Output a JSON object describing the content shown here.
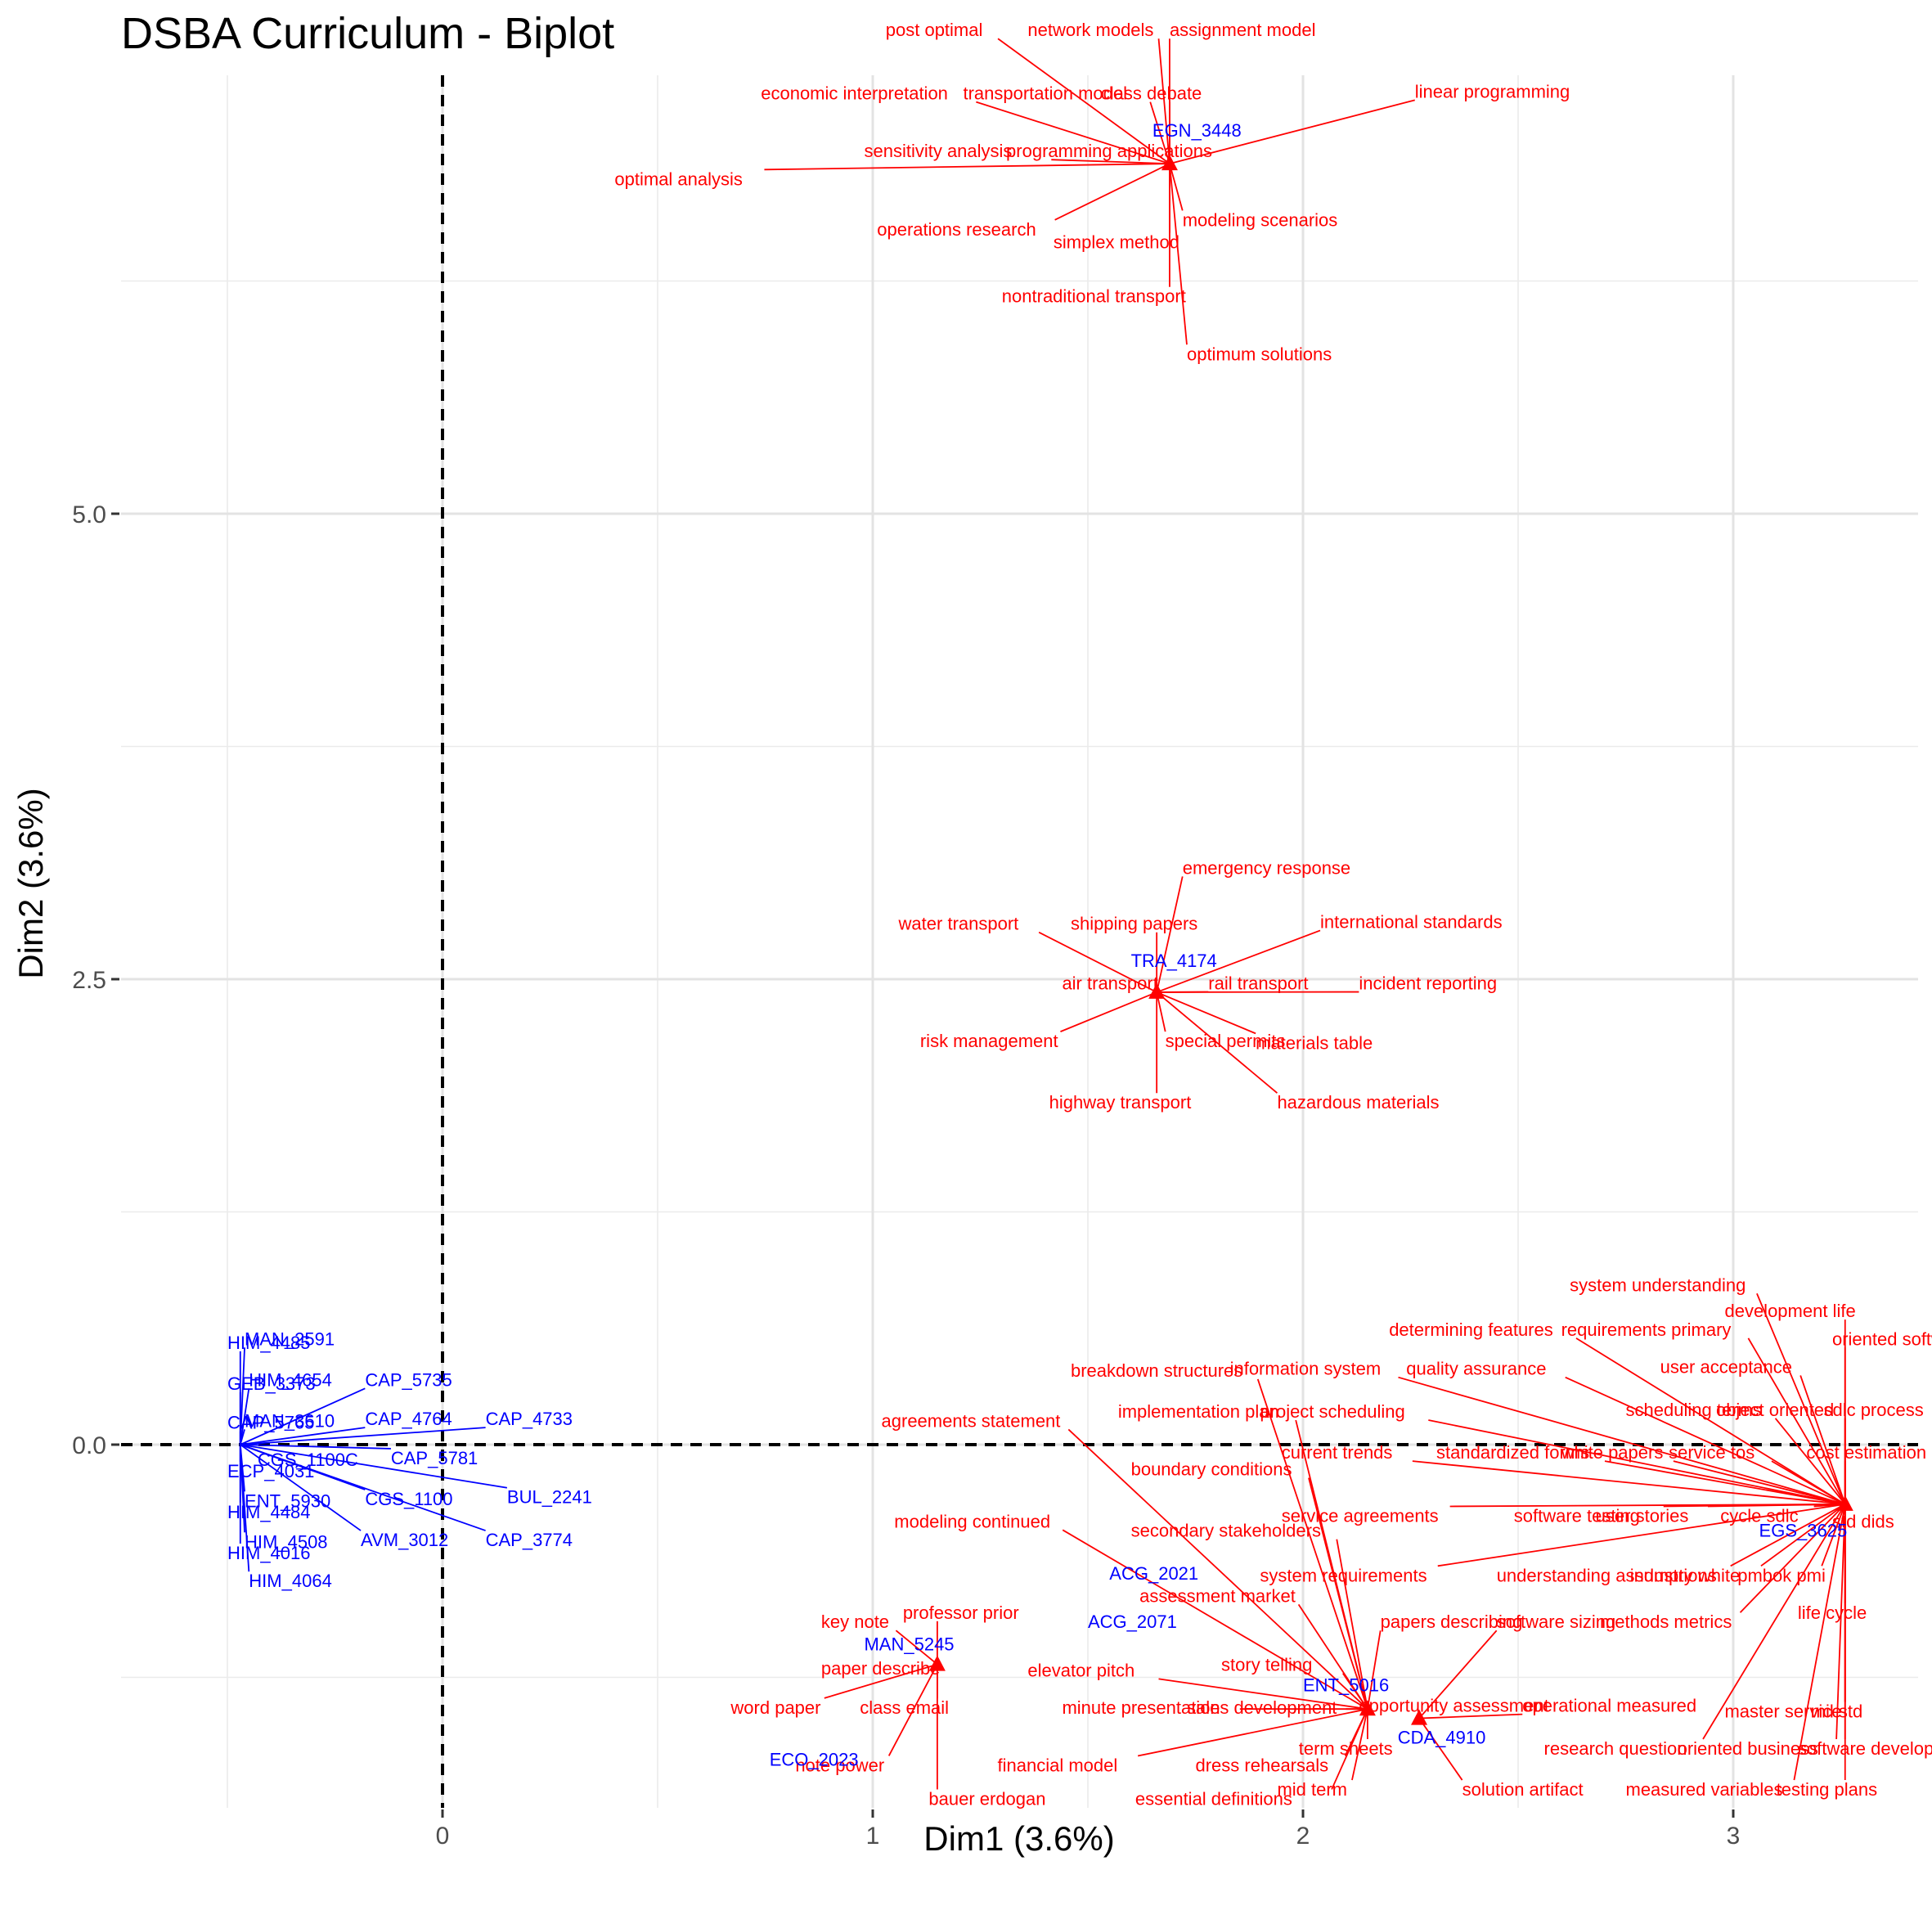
{
  "chart_data": {
    "type": "scatter",
    "title": "DSBA Curriculum - Biplot",
    "xlabel": "Dim1 (3.6%)",
    "ylabel": "Dim2 (3.6%)",
    "xlim": [
      -0.5,
      3.48
    ],
    "ylim": [
      -1.93,
      7.4
    ],
    "x_ticks": [
      0,
      1,
      2,
      3
    ],
    "x_tick_labels": [
      "0",
      "1",
      "2",
      "3"
    ],
    "y_ticks": [
      0,
      2.5,
      5
    ],
    "y_tick_labels": [
      "0.0",
      "2.5",
      "5.0"
    ],
    "grid": true,
    "reference_lines": [
      {
        "axis": "x",
        "value": 0,
        "style": "dashed"
      },
      {
        "axis": "y",
        "value": 0,
        "style": "dashed"
      }
    ],
    "colors": {
      "documents": "#0000ff",
      "terms": "#ff0000"
    },
    "documents": [
      {
        "label": "HIM_4485",
        "x": -0.5,
        "y": 0.55
      },
      {
        "label": "MAN_2591",
        "x": -0.46,
        "y": 0.57
      },
      {
        "label": "GEB_3373",
        "x": -0.5,
        "y": 0.33
      },
      {
        "label": "HIM_4654",
        "x": -0.45,
        "y": 0.35
      },
      {
        "label": "CAP_5735",
        "x": -0.18,
        "y": 0.35
      },
      {
        "label": "CAP_5765",
        "x": -0.5,
        "y": 0.12
      },
      {
        "label": "MAN_3610",
        "x": -0.46,
        "y": 0.13
      },
      {
        "label": "CAP_4764",
        "x": -0.18,
        "y": 0.14
      },
      {
        "label": "CAP_4733",
        "x": 0.1,
        "y": 0.14
      },
      {
        "label": "CGS_1100C",
        "x": -0.43,
        "y": -0.08
      },
      {
        "label": "CAP_5781",
        "x": -0.12,
        "y": -0.07
      },
      {
        "label": "ECP_4031",
        "x": -0.5,
        "y": -0.14
      },
      {
        "label": "ENT_5930",
        "x": -0.46,
        "y": -0.3
      },
      {
        "label": "CGS_1100",
        "x": -0.18,
        "y": -0.29
      },
      {
        "label": "BUL_2241",
        "x": 0.15,
        "y": -0.28
      },
      {
        "label": "HIM_4484",
        "x": -0.5,
        "y": -0.36
      },
      {
        "label": "HIM_4508",
        "x": -0.46,
        "y": -0.52
      },
      {
        "label": "AVM_3012",
        "x": -0.19,
        "y": -0.51
      },
      {
        "label": "CAP_3774",
        "x": 0.1,
        "y": -0.51
      },
      {
        "label": "HIM_4016",
        "x": -0.5,
        "y": -0.58
      },
      {
        "label": "HIM_4064",
        "x": -0.45,
        "y": -0.73
      },
      {
        "label": "EGN_3448",
        "x": 1.65,
        "y": 7.06
      },
      {
        "label": "TRA_4174",
        "x": 1.6,
        "y": 2.6
      },
      {
        "label": "EGS_3625",
        "x": 3.06,
        "y": -0.46
      },
      {
        "label": "ACG_2021",
        "x": 1.55,
        "y": -0.69
      },
      {
        "label": "ACG_2071",
        "x": 1.5,
        "y": -0.95
      },
      {
        "label": "MAN_5245",
        "x": 0.98,
        "y": -1.07
      },
      {
        "label": "ENT_5016",
        "x": 2.0,
        "y": -1.29
      },
      {
        "label": "CDA_4910",
        "x": 2.22,
        "y": -1.57
      },
      {
        "label": "ECO_2023",
        "x": 0.76,
        "y": -1.69
      }
    ],
    "terms": [
      {
        "label": "post optimal",
        "x": 1.03,
        "y": 7.6
      },
      {
        "label": "network models",
        "x": 1.36,
        "y": 7.6
      },
      {
        "label": "assignment model",
        "x": 1.69,
        "y": 7.6
      },
      {
        "label": "linear programming",
        "x": 2.26,
        "y": 7.27
      },
      {
        "label": "economic interpretation",
        "x": 0.74,
        "y": 7.26
      },
      {
        "label": "transportation model",
        "x": 1.21,
        "y": 7.26
      },
      {
        "label": "class debate",
        "x": 1.53,
        "y": 7.26
      },
      {
        "label": "sensitivity analysis",
        "x": 0.98,
        "y": 6.95
      },
      {
        "label": "programming applications",
        "x": 1.31,
        "y": 6.95
      },
      {
        "label": "optimal analysis",
        "x": 0.4,
        "y": 6.8
      },
      {
        "label": "operations research",
        "x": 1.01,
        "y": 6.53
      },
      {
        "label": "simplex method",
        "x": 1.42,
        "y": 6.46
      },
      {
        "label": "modeling scenarios",
        "x": 1.72,
        "y": 6.58
      },
      {
        "label": "nontraditional transport",
        "x": 1.3,
        "y": 6.17
      },
      {
        "label": "optimum solutions",
        "x": 1.73,
        "y": 5.86
      },
      {
        "label": "emergency response",
        "x": 1.72,
        "y": 3.1
      },
      {
        "label": "water transport",
        "x": 1.06,
        "y": 2.8
      },
      {
        "label": "shipping papers",
        "x": 1.46,
        "y": 2.8
      },
      {
        "label": "international standards",
        "x": 2.04,
        "y": 2.81
      },
      {
        "label": "air transport",
        "x": 1.44,
        "y": 2.48
      },
      {
        "label": "rail transport",
        "x": 1.78,
        "y": 2.48
      },
      {
        "label": "incident reporting",
        "x": 2.13,
        "y": 2.48
      },
      {
        "label": "risk management",
        "x": 1.11,
        "y": 2.17
      },
      {
        "label": "special permits",
        "x": 1.68,
        "y": 2.17
      },
      {
        "label": "materials table",
        "x": 1.89,
        "y": 2.16
      },
      {
        "label": "highway transport",
        "x": 1.41,
        "y": 1.84
      },
      {
        "label": "hazardous materials",
        "x": 1.94,
        "y": 1.84
      },
      {
        "label": "system understanding",
        "x": 2.62,
        "y": 0.86
      },
      {
        "label": "development life",
        "x": 2.98,
        "y": 0.72
      },
      {
        "label": "determining features",
        "x": 2.2,
        "y": 0.62
      },
      {
        "label": "requirements primary",
        "x": 2.6,
        "y": 0.62
      },
      {
        "label": "oriented software",
        "x": 3.23,
        "y": 0.57
      },
      {
        "label": "breakdown structures",
        "x": 1.46,
        "y": 0.4
      },
      {
        "label": "information system",
        "x": 1.83,
        "y": 0.41
      },
      {
        "label": "quality assurance",
        "x": 2.24,
        "y": 0.41
      },
      {
        "label": "user acceptance",
        "x": 2.83,
        "y": 0.42
      },
      {
        "label": "implementation plan",
        "x": 1.57,
        "y": 0.18
      },
      {
        "label": "project scheduling",
        "x": 1.9,
        "y": 0.18
      },
      {
        "label": "scheduling terms",
        "x": 2.75,
        "y": 0.19
      },
      {
        "label": "object oriented",
        "x": 2.96,
        "y": 0.19
      },
      {
        "label": "sdlc process",
        "x": 3.21,
        "y": 0.19
      },
      {
        "label": "agreements statement",
        "x": 1.02,
        "y": 0.13
      },
      {
        "label": "current trends",
        "x": 1.95,
        "y": -0.04
      },
      {
        "label": "standardized forms",
        "x": 2.31,
        "y": -0.04
      },
      {
        "label": "white papers",
        "x": 2.6,
        "y": -0.04
      },
      {
        "label": "service tos",
        "x": 2.85,
        "y": -0.04
      },
      {
        "label": "cost estimation",
        "x": 3.17,
        "y": -0.04
      },
      {
        "label": "boundary conditions",
        "x": 1.6,
        "y": -0.13
      },
      {
        "label": "service agreements",
        "x": 1.95,
        "y": -0.38
      },
      {
        "label": "software testing",
        "x": 2.49,
        "y": -0.38
      },
      {
        "label": "user stories",
        "x": 2.68,
        "y": -0.38
      },
      {
        "label": "cycle sdlc",
        "x": 2.97,
        "y": -0.38
      },
      {
        "label": "std dids",
        "x": 3.23,
        "y": -0.41
      },
      {
        "label": "modeling continued",
        "x": 1.05,
        "y": -0.41
      },
      {
        "label": "secondary stakeholders",
        "x": 1.6,
        "y": -0.46
      },
      {
        "label": "system requirements",
        "x": 1.9,
        "y": -0.7
      },
      {
        "label": "understanding assumptions",
        "x": 2.45,
        "y": -0.7
      },
      {
        "label": "industry white",
        "x": 2.76,
        "y": -0.7
      },
      {
        "label": "pmbok pmi",
        "x": 3.01,
        "y": -0.7
      },
      {
        "label": "assessment market",
        "x": 1.62,
        "y": -0.81
      },
      {
        "label": "key note",
        "x": 0.88,
        "y": -0.95
      },
      {
        "label": "professor prior",
        "x": 1.07,
        "y": -0.9
      },
      {
        "label": "papers describing",
        "x": 2.18,
        "y": -0.95
      },
      {
        "label": "software sizing",
        "x": 2.45,
        "y": -0.95
      },
      {
        "label": "methods metrics",
        "x": 2.69,
        "y": -0.95
      },
      {
        "label": "life cycle",
        "x": 3.15,
        "y": -0.9
      },
      {
        "label": "story telling",
        "x": 1.81,
        "y": -1.18
      },
      {
        "label": "elevator pitch",
        "x": 1.36,
        "y": -1.21
      },
      {
        "label": "paper describe",
        "x": 0.88,
        "y": -1.2
      },
      {
        "label": "opportunity assessment",
        "x": 2.13,
        "y": -1.4
      },
      {
        "label": "operational measured",
        "x": 2.51,
        "y": -1.4
      },
      {
        "label": "master service",
        "x": 2.98,
        "y": -1.43
      },
      {
        "label": "mil std",
        "x": 3.18,
        "y": -1.43
      },
      {
        "label": "word paper",
        "x": 0.67,
        "y": -1.41
      },
      {
        "label": "class email",
        "x": 0.97,
        "y": -1.41
      },
      {
        "label": "minute presentation",
        "x": 1.44,
        "y": -1.41
      },
      {
        "label": "sales development",
        "x": 1.73,
        "y": -1.41
      },
      {
        "label": "term sheets",
        "x": 1.99,
        "y": -1.63
      },
      {
        "label": "research question",
        "x": 2.56,
        "y": -1.63
      },
      {
        "label": "oriented business",
        "x": 2.87,
        "y": -1.63
      },
      {
        "label": "software development",
        "x": 3.15,
        "y": -1.63
      },
      {
        "label": "note power",
        "x": 0.82,
        "y": -1.72
      },
      {
        "label": "financial model",
        "x": 1.29,
        "y": -1.72
      },
      {
        "label": "dress rehearsals",
        "x": 1.75,
        "y": -1.72
      },
      {
        "label": "mid term",
        "x": 1.94,
        "y": -1.85
      },
      {
        "label": "solution artifact",
        "x": 2.37,
        "y": -1.85
      },
      {
        "label": "measured variables",
        "x": 2.75,
        "y": -1.85
      },
      {
        "label": "testing plans",
        "x": 3.1,
        "y": -1.85
      },
      {
        "label": "bauer erdogan",
        "x": 1.13,
        "y": -1.9
      },
      {
        "label": "essential definitions",
        "x": 1.61,
        "y": -1.9
      }
    ]
  }
}
